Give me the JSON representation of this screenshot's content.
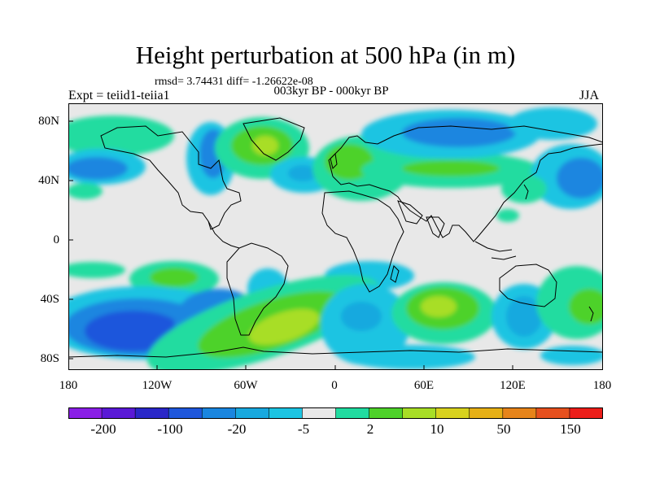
{
  "title": "Height perturbation at 500 hPa (in m)",
  "stats": "rmsd= 3.74431 diff= -1.26622e-08",
  "experiment": "Expt = teiid1-teiia1",
  "period": "003kyr BP - 000kyr BP",
  "season": "JJA",
  "lat_labels": [
    "80N",
    "40N",
    "0",
    "40S",
    "80S"
  ],
  "lon_labels": [
    "180",
    "120W",
    "60W",
    "0",
    "60E",
    "120E",
    "180"
  ],
  "colorbar": {
    "colors": [
      "#8a1fe6",
      "#5a19d6",
      "#2a27c8",
      "#1f57dc",
      "#1a86e0",
      "#18a9df",
      "#1cc4e2",
      "#e8e8e8",
      "#21dca0",
      "#4ed22a",
      "#a8de26",
      "#d8d21e",
      "#e6b016",
      "#e6841a",
      "#e6501e",
      "#ec1e1a"
    ],
    "labels": [
      "-200",
      "-100",
      "-20",
      "-5",
      "2",
      "10",
      "50",
      "150"
    ]
  }
}
